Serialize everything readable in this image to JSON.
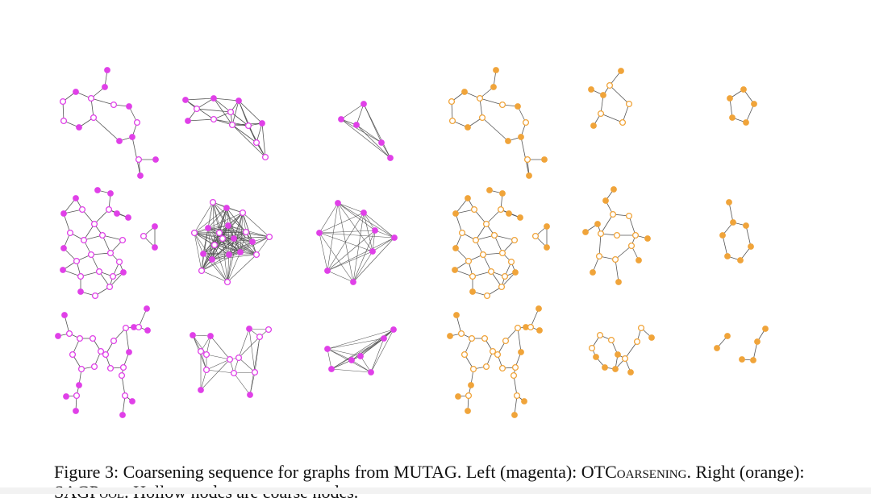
{
  "colors": {
    "left_method": "#e040e8",
    "right_method": "#f0a43a",
    "edge": "#555555"
  },
  "caption": {
    "figure_label": "Figure 3:",
    "text_1": "Coarsening sequence for graphs from MUTAG. Left (magenta): ",
    "method_left": "OTCoarsening",
    "text_2": ". Right (orange): ",
    "method_right": "SAGPool",
    "text_3": ". Hollow nodes are coarse nodes."
  }
}
